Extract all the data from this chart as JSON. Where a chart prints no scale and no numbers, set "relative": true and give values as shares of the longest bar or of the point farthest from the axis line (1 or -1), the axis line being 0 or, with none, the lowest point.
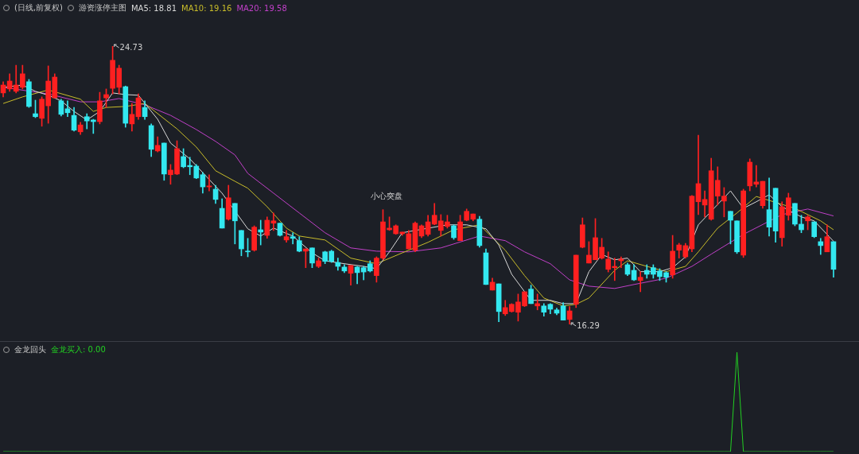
{
  "chart_data": [
    {
      "type": "candlestick",
      "title": "(日线,前复权)",
      "subtitle": "游资涨停主图",
      "legend": "top left",
      "tick_labels": false,
      "categories": [
        null,
        null,
        null,
        null,
        null,
        null,
        null,
        null,
        null,
        null,
        null,
        null,
        null,
        null,
        null,
        null,
        null,
        null,
        null,
        null,
        null,
        null,
        null,
        null,
        null,
        null,
        null,
        null,
        null,
        null,
        null,
        null,
        null,
        null,
        null,
        null,
        null,
        null,
        null,
        null,
        null,
        null,
        null,
        null,
        null,
        null,
        null,
        null,
        null,
        null,
        null,
        null,
        null,
        null,
        null,
        null,
        null,
        null,
        null,
        null,
        null,
        null,
        null,
        null,
        null,
        null,
        null,
        null,
        null,
        null,
        null,
        null,
        null,
        null,
        null,
        null,
        null,
        null,
        null,
        null,
        null,
        null,
        null,
        null,
        null,
        null,
        null,
        null,
        null,
        null,
        null,
        null,
        null,
        null,
        null,
        null,
        null,
        null,
        null,
        null,
        null,
        null,
        null,
        null,
        null,
        null,
        null,
        null,
        null,
        null,
        null,
        null,
        null,
        null,
        null,
        null,
        null,
        null,
        null,
        null,
        null,
        null,
        null,
        null,
        null,
        null,
        null,
        null,
        null,
        null
      ],
      "ohlc": [
        [
          23.31,
          23.65,
          23.19,
          23.55
        ],
        [
          23.43,
          23.89,
          23.36,
          23.67
        ],
        [
          23.36,
          24.15,
          23.31,
          23.55
        ],
        [
          23.48,
          24.15,
          23.43,
          23.89
        ],
        [
          23.65,
          23.72,
          22.87,
          22.9
        ],
        [
          22.68,
          23.09,
          22.56,
          22.59
        ],
        [
          22.54,
          23.19,
          22.3,
          23.12
        ],
        [
          22.92,
          24.13,
          22.39,
          23.67
        ],
        [
          23.16,
          23.89,
          23.16,
          23.79
        ],
        [
          23.07,
          23.12,
          22.61,
          22.66
        ],
        [
          22.83,
          23.07,
          22.59,
          22.71
        ],
        [
          22.63,
          22.87,
          22.15,
          22.18
        ],
        [
          22.13,
          22.42,
          22.05,
          22.34
        ],
        [
          22.59,
          22.68,
          22.22,
          22.46
        ],
        [
          22.49,
          22.51,
          22.08,
          22.44
        ],
        [
          22.44,
          23.33,
          22.37,
          23.07
        ],
        [
          23.16,
          23.43,
          22.87,
          23.26
        ],
        [
          23.45,
          24.73,
          23.28,
          24.3
        ],
        [
          23.48,
          24.15,
          23.28,
          24.06
        ],
        [
          23.5,
          23.52,
          22.27,
          22.39
        ],
        [
          22.37,
          22.99,
          22.15,
          22.66
        ],
        [
          22.59,
          23.28,
          22.51,
          23.16
        ],
        [
          22.87,
          23.07,
          22.51,
          22.59
        ],
        [
          22.32,
          22.37,
          21.38,
          21.6
        ],
        [
          21.55,
          21.98,
          21.52,
          21.72
        ],
        [
          21.79,
          21.79,
          20.66,
          20.85
        ],
        [
          20.83,
          21.14,
          20.54,
          20.97
        ],
        [
          20.85,
          21.86,
          20.83,
          21.62
        ],
        [
          21.38,
          21.62,
          21.04,
          21.07
        ],
        [
          21.11,
          21.36,
          20.83,
          21.07
        ],
        [
          21.09,
          21.14,
          20.71,
          20.73
        ],
        [
          20.83,
          20.9,
          20.27,
          20.46
        ],
        [
          20.46,
          20.83,
          20.34,
          20.49
        ],
        [
          20.39,
          20.51,
          19.96,
          20.08
        ],
        [
          19.81,
          20.1,
          19.21,
          19.21
        ],
        [
          19.48,
          20.51,
          19.45,
          20.13
        ],
        [
          19.96,
          19.96,
          18.73,
          19.43
        ],
        [
          19.14,
          19.14,
          18.37,
          18.58
        ],
        [
          18.51,
          18.9,
          18.34,
          18.49
        ],
        [
          18.54,
          19.28,
          18.51,
          19.24
        ],
        [
          19.16,
          19.45,
          18.7,
          19.09
        ],
        [
          18.99,
          19.55,
          18.9,
          19.45
        ],
        [
          19.36,
          19.67,
          19.14,
          19.43
        ],
        [
          19.36,
          19.36,
          18.97,
          18.99
        ],
        [
          18.85,
          19.14,
          18.78,
          18.95
        ],
        [
          18.95,
          19.07,
          18.73,
          18.9
        ],
        [
          18.83,
          18.95,
          18.49,
          18.51
        ],
        [
          18.51,
          18.58,
          18.01,
          18.58
        ],
        [
          18.61,
          18.61,
          18.01,
          18.15
        ],
        [
          18.05,
          18.3,
          18.01,
          18.22
        ],
        [
          18.49,
          18.51,
          18.13,
          18.2
        ],
        [
          18.51,
          18.54,
          18.17,
          18.2
        ],
        [
          18.17,
          18.3,
          17.93,
          18.05
        ],
        [
          18.03,
          18.1,
          17.86,
          17.91
        ],
        [
          17.84,
          18.08,
          17.48,
          18.08
        ],
        [
          18.03,
          18.05,
          17.52,
          17.86
        ],
        [
          18.01,
          18.05,
          17.64,
          17.88
        ],
        [
          18.13,
          18.22,
          17.88,
          17.91
        ],
        [
          17.77,
          18.34,
          17.57,
          18.3
        ],
        [
          18.3,
          19.77,
          18.25,
          19.4
        ],
        [
          19.16,
          19.55,
          19.14,
          19.21
        ],
        [
          19.04,
          19.31,
          19.02,
          19.28
        ],
        [
          19.04,
          19.09,
          18.99,
          19.09
        ],
        [
          18.58,
          19.14,
          18.58,
          19.04
        ],
        [
          18.54,
          19.4,
          18.49,
          19.36
        ],
        [
          18.97,
          19.31,
          18.92,
          19.28
        ],
        [
          19.02,
          19.6,
          18.97,
          19.4
        ],
        [
          19.33,
          19.96,
          19.31,
          19.6
        ],
        [
          19.14,
          19.62,
          18.97,
          19.43
        ],
        [
          19.26,
          19.6,
          19.21,
          19.4
        ],
        [
          19.28,
          19.31,
          18.87,
          18.92
        ],
        [
          18.83,
          19.6,
          18.83,
          19.4
        ],
        [
          19.45,
          19.79,
          19.43,
          19.72
        ],
        [
          19.48,
          19.64,
          19.43,
          19.64
        ],
        [
          19.48,
          19.57,
          18.63,
          18.68
        ],
        [
          18.46,
          18.58,
          17.5,
          17.5
        ],
        [
          17.33,
          17.69,
          17.33,
          17.57
        ],
        [
          17.52,
          17.52,
          16.37,
          16.68
        ],
        [
          16.61,
          17.02,
          16.56,
          16.8
        ],
        [
          16.68,
          16.92,
          16.66,
          16.9
        ],
        [
          16.66,
          17.21,
          16.39,
          16.97
        ],
        [
          16.85,
          17.28,
          16.83,
          17.28
        ],
        [
          17.36,
          17.48,
          16.92,
          16.92
        ],
        [
          16.85,
          17.21,
          16.73,
          16.92
        ],
        [
          16.85,
          16.92,
          16.54,
          16.66
        ],
        [
          16.9,
          16.92,
          16.61,
          16.75
        ],
        [
          16.73,
          16.78,
          16.58,
          16.63
        ],
        [
          16.85,
          16.95,
          16.42,
          16.42
        ],
        [
          16.44,
          16.83,
          16.29,
          16.7
        ],
        [
          16.9,
          18.39,
          16.8,
          18.39
        ],
        [
          18.63,
          19.52,
          18.61,
          19.31
        ],
        [
          18.15,
          18.8,
          18.15,
          18.39
        ],
        [
          18.25,
          19.5,
          18.25,
          18.92
        ],
        [
          18.3,
          18.9,
          18.27,
          18.63
        ],
        [
          17.96,
          18.49,
          17.88,
          18.27
        ],
        [
          18.01,
          18.3,
          17.62,
          18.05
        ],
        [
          18.22,
          18.34,
          18.01,
          18.27
        ],
        [
          18.1,
          18.15,
          17.77,
          17.81
        ],
        [
          17.93,
          18.1,
          17.62,
          17.64
        ],
        [
          17.62,
          17.89,
          17.28,
          17.72
        ],
        [
          17.93,
          18.1,
          17.69,
          17.81
        ],
        [
          18.01,
          18.1,
          17.69,
          17.81
        ],
        [
          17.91,
          17.98,
          17.62,
          17.74
        ],
        [
          17.86,
          17.89,
          17.57,
          17.72
        ],
        [
          17.79,
          18.99,
          17.69,
          18.51
        ],
        [
          18.54,
          18.75,
          18.3,
          18.7
        ],
        [
          18.34,
          18.75,
          18.3,
          18.68
        ],
        [
          18.58,
          20.2,
          18.49,
          20.18
        ],
        [
          20.01,
          22.03,
          19.62,
          20.56
        ],
        [
          19.91,
          20.34,
          19.55,
          20.08
        ],
        [
          19.48,
          21.33,
          19.45,
          20.95
        ],
        [
          20.18,
          21.07,
          19.91,
          20.66
        ],
        [
          20.03,
          20.44,
          19.55,
          20.18
        ],
        [
          19.72,
          19.72,
          18.73,
          19.45
        ],
        [
          19.43,
          19.43,
          18.44,
          18.49
        ],
        [
          18.39,
          20.39,
          18.32,
          20.34
        ],
        [
          20.49,
          21.31,
          20.34,
          21.21
        ],
        [
          20.54,
          21.11,
          20.46,
          20.61
        ],
        [
          19.89,
          20.63,
          19.81,
          20.63
        ],
        [
          19.77,
          20.73,
          18.97,
          19.24
        ],
        [
          20.42,
          20.42,
          18.78,
          19.12
        ],
        [
          18.92,
          20.01,
          18.66,
          19.86
        ],
        [
          19.6,
          20.27,
          19.45,
          20.13
        ],
        [
          19.96,
          19.96,
          19.28,
          19.33
        ],
        [
          19.33,
          19.6,
          19.07,
          19.16
        ],
        [
          19.43,
          19.6,
          19.16,
          19.55
        ],
        [
          19.4,
          19.4,
          18.92,
          18.95
        ],
        [
          18.8,
          18.9,
          18.41,
          18.68
        ],
        [
          18.49,
          19.31,
          18.49,
          18.95
        ],
        [
          18.8,
          18.8,
          17.72,
          17.96
        ]
      ],
      "colors": [
        "#ff2020",
        "#ff2020",
        "#ff2020",
        "#ff2020",
        "#33e8f0",
        "#33e8f0",
        "#ff2020",
        "#ff2020",
        "#ff2020",
        "#33e8f0",
        "#33e8f0",
        "#33e8f0",
        "#ff2020",
        "#33e8f0",
        "#33e8f0",
        "#ff2020",
        "#ff2020",
        "#ff2020",
        "#ff2020",
        "#33e8f0",
        "#ff2020",
        "#ff2020",
        "#33e8f0",
        "#33e8f0",
        "#ff2020",
        "#33e8f0",
        "#ff2020",
        "#ff2020",
        "#33e8f0",
        "#33e8f0",
        "#33e8f0",
        "#33e8f0",
        "#ff2020",
        "#33e8f0",
        "#33e8f0",
        "#ff2020",
        "#33e8f0",
        "#33e8f0",
        "#33e8f0",
        "#ff2020",
        "#33e8f0",
        "#ff2020",
        "#ff2020",
        "#33e8f0",
        "#ff2020",
        "#33e8f0",
        "#33e8f0",
        "#ff2020",
        "#33e8f0",
        "#ff2020",
        "#33e8f0",
        "#33e8f0",
        "#33e8f0",
        "#33e8f0",
        "#ff2020",
        "#33e8f0",
        "#33e8f0",
        "#33e8f0",
        "#ff2020",
        "#ff2020",
        "#ff2020",
        "#ff2020",
        "#ff2020",
        "#ff2020",
        "#ff2020",
        "#ff2020",
        "#ff2020",
        "#ff2020",
        "#ff2020",
        "#ff2020",
        "#33e8f0",
        "#ff2020",
        "#ff2020",
        "#ff2020",
        "#33e8f0",
        "#33e8f0",
        "#ff2020",
        "#33e8f0",
        "#ff2020",
        "#ff2020",
        "#ff2020",
        "#ff2020",
        "#33e8f0",
        "#ff2020",
        "#33e8f0",
        "#33e8f0",
        "#33e8f0",
        "#33e8f0",
        "#ff2020",
        "#ff2020",
        "#ff2020",
        "#ff2020",
        "#ff2020",
        "#ff2020",
        "#ff2020",
        "#ff2020",
        "#ff2020",
        "#33e8f0",
        "#33e8f0",
        "#ff2020",
        "#33e8f0",
        "#33e8f0",
        "#33e8f0",
        "#33e8f0",
        "#ff2020",
        "#ff2020",
        "#ff2020",
        "#ff2020",
        "#ff2020",
        "#ff2020",
        "#ff2020",
        "#ff2020",
        "#ff2020",
        "#33e8f0",
        "#33e8f0",
        "#ff2020",
        "#ff2020",
        "#ff2020",
        "#ff2020",
        "#33e8f0",
        "#33e8f0",
        "#ff2020",
        "#ff2020",
        "#33e8f0",
        "#33e8f0",
        "#ff2020",
        "#33e8f0",
        "#33e8f0",
        "#ff2020",
        "#33e8f0"
      ],
      "series": [
        {
          "type": "line",
          "name": "MA5: 18.81",
          "color": "#d8d8d8",
          "values": [
            23.48,
            null,
            null,
            23.55,
            null,
            23.36,
            null,
            23.24,
            null,
            23.07,
            null,
            22.75,
            null,
            22.49,
            null,
            22.75,
            null,
            23.31,
            null,
            23.26,
            null,
            23.24,
            null,
            null,
            22.51,
            null,
            21.79,
            null,
            null,
            21.31,
            null,
            null,
            null,
            null,
            20.27,
            null,
            null,
            null,
            19.19,
            null,
            18.97,
            null,
            19.21,
            null,
            null,
            18.97,
            null,
            null,
            18.46,
            null,
            18.22,
            null,
            null,
            18.13,
            null,
            null,
            18.05,
            null,
            17.98,
            null,
            18.49,
            null,
            19.07,
            null,
            null,
            null,
            null,
            null,
            null,
            19.31,
            null,
            null,
            19.31,
            null,
            null,
            19.19,
            null,
            18.7,
            null,
            17.81,
            null,
            null,
            17.02,
            null,
            null,
            17.02,
            null,
            16.92,
            null,
            16.92,
            null,
            17.89,
            null,
            18.41,
            null,
            18.25,
            null,
            18.3,
            null,
            17.89,
            null,
            null,
            17.89,
            null,
            18.01,
            null,
            18.34,
            null,
            19.31,
            null,
            null,
            null,
            null,
            20.34,
            null,
            19.81,
            null,
            20.01,
            null,
            20.22,
            null,
            19.86,
            null,
            null,
            19.55,
            null,
            19.43,
            null,
            19.02,
            18.81
          ]
        },
        {
          "type": "line",
          "name": "MA10: 19.16",
          "color": "#c8bc2a",
          "values": [
            22.99,
            null,
            null,
            23.19,
            null,
            null,
            null,
            23.4,
            null,
            null,
            null,
            null,
            23.12,
            null,
            22.75,
            null,
            22.87,
            null,
            null,
            22.9,
            null,
            null,
            22.99,
            null,
            null,
            null,
            null,
            22.22,
            null,
            null,
            21.67,
            null,
            null,
            20.95,
            null,
            null,
            20.63,
            null,
            20.42,
            null,
            null,
            19.86,
            null,
            null,
            19.21,
            null,
            18.97,
            null,
            null,
            null,
            18.85,
            null,
            null,
            null,
            18.3,
            null,
            null,
            null,
            18.13,
            null,
            null,
            null,
            18.46,
            null,
            null,
            null,
            18.78,
            null,
            null,
            null,
            19.16,
            null,
            null,
            null,
            19.31,
            null,
            null,
            null,
            18.54,
            null,
            null,
            17.77,
            null,
            null,
            17.09,
            null,
            null,
            16.85,
            null,
            16.9,
            null,
            17.09,
            null,
            null,
            null,
            17.93,
            null,
            18.22,
            null,
            null,
            18.05,
            null,
            null,
            17.89,
            null,
            null,
            18.05,
            null,
            18.49,
            null,
            null,
            19.21,
            null,
            null,
            19.67,
            null,
            null,
            20.17,
            null,
            null,
            null,
            null,
            null,
            19.81,
            null,
            null,
            null,
            19.43,
            null,
            19.16
          ]
        },
        {
          "type": "line",
          "name": "MA20: 19.58",
          "color": "#c040c8",
          "values": [
            23.48,
            null,
            null,
            null,
            null,
            null,
            null,
            23.28,
            null,
            null,
            null,
            null,
            23.04,
            null,
            null,
            23.04,
            null,
            null,
            23.14,
            null,
            null,
            null,
            22.95,
            null,
            null,
            null,
            22.63,
            null,
            null,
            null,
            22.2,
            null,
            null,
            21.84,
            null,
            null,
            21.43,
            null,
            20.87,
            null,
            null,
            null,
            20.27,
            null,
            null,
            null,
            19.67,
            null,
            null,
            null,
            19.07,
            null,
            null,
            null,
            18.61,
            null,
            null,
            null,
            18.51,
            null,
            null,
            null,
            null,
            18.49,
            null,
            null,
            null,
            null,
            18.61,
            null,
            null,
            null,
            null,
            null,
            18.97,
            null,
            null,
            null,
            18.83,
            null,
            null,
            18.49,
            null,
            null,
            null,
            18.13,
            null,
            null,
            17.64,
            null,
            null,
            17.45,
            null,
            null,
            null,
            17.38,
            null,
            null,
            17.5,
            null,
            null,
            null,
            null,
            17.69,
            null,
            null,
            null,
            18.05,
            null,
            null,
            18.42,
            null,
            null,
            null,
            null,
            19.02,
            null,
            null,
            null,
            null,
            null,
            19.62,
            null,
            null,
            null,
            19.79,
            null,
            null,
            null,
            19.58
          ]
        }
      ],
      "annotations": [
        "24.73",
        "16.29",
        "小心突盘"
      ]
    },
    {
      "type": "line",
      "title": "金龙回头",
      "legend": "top left",
      "tick_labels": false,
      "relative": true,
      "categories": [
        null,
        null,
        null,
        null,
        null,
        null,
        null,
        null,
        null,
        null,
        null,
        null,
        null,
        null,
        null,
        null,
        null,
        null,
        null,
        null,
        null,
        null,
        null,
        null,
        null,
        null,
        null,
        null,
        null,
        null,
        null,
        null,
        null,
        null,
        null,
        null,
        null,
        null,
        null,
        null,
        null,
        null,
        null,
        null,
        null,
        null,
        null,
        null,
        null,
        null,
        null,
        null,
        null,
        null,
        null,
        null,
        null,
        null,
        null,
        null,
        null,
        null,
        null,
        null,
        null,
        null,
        null,
        null,
        null,
        null,
        null,
        null,
        null,
        null,
        null,
        null,
        null,
        null,
        null,
        null,
        null,
        null,
        null,
        null,
        null,
        null,
        null,
        null,
        null,
        null,
        null,
        null,
        null,
        null,
        null,
        null,
        null,
        null,
        null,
        null,
        null,
        null,
        null,
        null,
        null,
        null,
        null,
        null,
        null,
        null,
        null,
        null,
        null,
        null,
        null,
        null,
        null,
        null,
        null,
        null,
        null,
        null,
        null,
        null,
        null,
        null,
        null,
        null,
        null,
        null
      ],
      "series": [
        {
          "name": "金龙买入: 0.00",
          "color": "#22d022",
          "values": [
            0,
            0,
            0,
            0,
            0,
            0,
            0,
            0,
            0,
            0,
            0,
            0,
            0,
            0,
            0,
            0,
            0,
            0,
            0,
            0,
            0,
            0,
            0,
            0,
            0,
            0,
            0,
            0,
            0,
            0,
            0,
            0,
            0,
            0,
            0,
            0,
            0,
            0,
            0,
            0,
            0,
            0,
            0,
            0,
            0,
            0,
            0,
            0,
            0,
            0,
            0,
            0,
            0,
            0,
            0,
            0,
            0,
            0,
            0,
            0,
            0,
            0,
            0,
            0,
            0,
            0,
            0,
            0,
            0,
            0,
            0,
            0,
            0,
            0,
            0,
            0,
            0,
            0,
            0,
            0,
            0,
            0,
            0,
            0,
            0,
            0,
            0,
            0,
            0,
            0,
            0,
            0,
            0,
            0,
            0,
            0,
            0,
            0,
            0,
            0,
            0,
            0,
            0,
            0,
            0,
            0,
            0,
            0,
            0,
            0,
            0,
            0,
            0,
            0,
            1,
            0,
            0,
            0,
            0,
            0,
            0,
            0,
            0,
            0,
            0,
            0,
            0,
            0,
            0,
            0
          ]
        }
      ]
    }
  ]
}
